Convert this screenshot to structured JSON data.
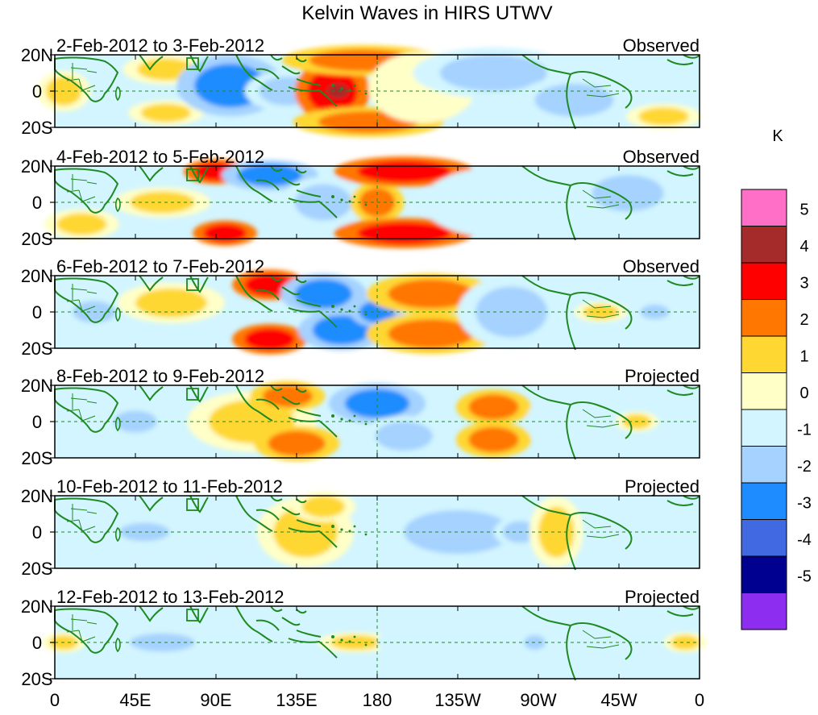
{
  "chart_data": {
    "type": "heatmap",
    "title": "Kelvin Waves in HIRS UTWV",
    "x_tick_labels": [
      "0",
      "45E",
      "90E",
      "135E",
      "180",
      "135W",
      "90W",
      "45W",
      "0"
    ],
    "x_tick_values_deg_east": [
      0,
      45,
      90,
      135,
      180,
      225,
      270,
      315,
      360
    ],
    "xlim": [
      0,
      360
    ],
    "y_tick_labels": [
      "20N",
      "0",
      "20S"
    ],
    "y_tick_values": [
      20,
      0,
      -20
    ],
    "ylim": [
      -20,
      20
    ],
    "colorbar": {
      "unit": "K",
      "levels": [
        5,
        4,
        3,
        2,
        1,
        0,
        -1,
        -2,
        -3,
        -4,
        -5
      ],
      "colors": [
        "#ff6ec7",
        "#a52a2a",
        "#ff0000",
        "#ff7700",
        "#ffd733",
        "#ffffc8",
        "#d2f5ff",
        "#a5d2ff",
        "#1e8cff",
        "#4169e1",
        "#000090",
        "#8c2df0"
      ]
    },
    "panels": [
      {
        "date_range": "2-Feb-2012 to 3-Feb-2012",
        "status": "Observed",
        "blobs": [
          {
            "lon": 5,
            "lat": 0,
            "rx": 10,
            "ry": 8,
            "value": 1.2
          },
          {
            "lon": 62,
            "lat": 12,
            "rx": 16,
            "ry": 6,
            "value": 1.5
          },
          {
            "lon": 62,
            "lat": -12,
            "rx": 14,
            "ry": 5,
            "value": 1.3
          },
          {
            "lon": 98,
            "lat": 3,
            "rx": 20,
            "ry": 12,
            "value": -2.2
          },
          {
            "lon": 130,
            "lat": 0,
            "rx": 16,
            "ry": 8,
            "value": -1.5
          },
          {
            "lon": 155,
            "lat": 0,
            "rx": 14,
            "ry": 12,
            "value": 3.0
          },
          {
            "lon": 158,
            "lat": 0,
            "rx": 6,
            "ry": 4,
            "value": 4.0
          },
          {
            "lon": 172,
            "lat": 17,
            "rx": 30,
            "ry": 6,
            "value": 2.4
          },
          {
            "lon": 175,
            "lat": -17,
            "rx": 28,
            "ry": 6,
            "value": 2.5
          },
          {
            "lon": 205,
            "lat": 2,
            "rx": 20,
            "ry": 14,
            "value": 0.8
          },
          {
            "lon": 245,
            "lat": 10,
            "rx": 30,
            "ry": 10,
            "value": -1.2
          },
          {
            "lon": 290,
            "lat": -5,
            "rx": 22,
            "ry": 9,
            "value": -1.3
          },
          {
            "lon": 340,
            "lat": -14,
            "rx": 14,
            "ry": 5,
            "value": 1.8
          }
        ]
      },
      {
        "date_range": "4-Feb-2012 to 5-Feb-2012",
        "status": "Observed",
        "blobs": [
          {
            "lon": 15,
            "lat": -12,
            "rx": 14,
            "ry": 6,
            "value": 1.3
          },
          {
            "lon": 60,
            "lat": 0,
            "rx": 18,
            "ry": 6,
            "value": 1.0
          },
          {
            "lon": 90,
            "lat": 17,
            "rx": 12,
            "ry": 5,
            "value": 3.2
          },
          {
            "lon": 95,
            "lat": -17,
            "rx": 12,
            "ry": 5,
            "value": 3.0
          },
          {
            "lon": 120,
            "lat": 15,
            "rx": 18,
            "ry": 6,
            "value": -2.4
          },
          {
            "lon": 150,
            "lat": 0,
            "rx": 16,
            "ry": 10,
            "value": -2.0
          },
          {
            "lon": 180,
            "lat": 0,
            "rx": 10,
            "ry": 8,
            "value": 2.8
          },
          {
            "lon": 195,
            "lat": 17,
            "rx": 26,
            "ry": 6,
            "value": 3.2
          },
          {
            "lon": 195,
            "lat": -17,
            "rx": 26,
            "ry": 6,
            "value": 3.0
          },
          {
            "lon": 250,
            "lat": 0,
            "rx": 30,
            "ry": 14,
            "value": -0.8
          },
          {
            "lon": 320,
            "lat": 5,
            "rx": 20,
            "ry": 10,
            "value": -1.2
          }
        ]
      },
      {
        "date_range": "6-Feb-2012 to 7-Feb-2012",
        "status": "Observed",
        "blobs": [
          {
            "lon": 22,
            "lat": 0,
            "rx": 12,
            "ry": 6,
            "value": -2.0
          },
          {
            "lon": 65,
            "lat": 5,
            "rx": 20,
            "ry": 8,
            "value": 1.0
          },
          {
            "lon": 120,
            "lat": 15,
            "rx": 14,
            "ry": 6,
            "value": 3.2
          },
          {
            "lon": 120,
            "lat": -15,
            "rx": 14,
            "ry": 6,
            "value": 3.0
          },
          {
            "lon": 150,
            "lat": 10,
            "rx": 16,
            "ry": 8,
            "value": -3.0
          },
          {
            "lon": 160,
            "lat": -10,
            "rx": 16,
            "ry": 8,
            "value": -2.5
          },
          {
            "lon": 180,
            "lat": 0,
            "rx": 10,
            "ry": 6,
            "value": -2.2
          },
          {
            "lon": 210,
            "lat": 10,
            "rx": 24,
            "ry": 8,
            "value": 2.6
          },
          {
            "lon": 210,
            "lat": -12,
            "rx": 24,
            "ry": 8,
            "value": 2.8
          },
          {
            "lon": 255,
            "lat": 0,
            "rx": 20,
            "ry": 14,
            "value": -1.4
          },
          {
            "lon": 305,
            "lat": 0,
            "rx": 10,
            "ry": 4,
            "value": 1.5
          },
          {
            "lon": 335,
            "lat": 0,
            "rx": 8,
            "ry": 4,
            "value": -2.0
          }
        ]
      },
      {
        "date_range": "8-Feb-2012 to 9-Feb-2012",
        "status": "Projected",
        "blobs": [
          {
            "lon": 45,
            "lat": 0,
            "rx": 12,
            "ry": 6,
            "value": -2.0
          },
          {
            "lon": 110,
            "lat": 0,
            "rx": 24,
            "ry": 12,
            "value": 1.8
          },
          {
            "lon": 130,
            "lat": 14,
            "rx": 14,
            "ry": 6,
            "value": 2.2
          },
          {
            "lon": 135,
            "lat": -12,
            "rx": 16,
            "ry": 7,
            "value": 2.4
          },
          {
            "lon": 180,
            "lat": 10,
            "rx": 18,
            "ry": 8,
            "value": -2.2
          },
          {
            "lon": 195,
            "lat": -8,
            "rx": 16,
            "ry": 8,
            "value": -2.0
          },
          {
            "lon": 245,
            "lat": 8,
            "rx": 14,
            "ry": 7,
            "value": 2.8
          },
          {
            "lon": 245,
            "lat": -10,
            "rx": 14,
            "ry": 7,
            "value": 2.6
          },
          {
            "lon": 290,
            "lat": 0,
            "rx": 18,
            "ry": 12,
            "value": -0.8
          },
          {
            "lon": 325,
            "lat": 0,
            "rx": 8,
            "ry": 4,
            "value": 1.2
          }
        ]
      },
      {
        "date_range": "10-Feb-2012 to 11-Feb-2012",
        "status": "Projected",
        "blobs": [
          {
            "lon": 50,
            "lat": 0,
            "rx": 14,
            "ry": 5,
            "value": -1.2
          },
          {
            "lon": 140,
            "lat": 0,
            "rx": 18,
            "ry": 14,
            "value": 1.5
          },
          {
            "lon": 150,
            "lat": 14,
            "rx": 12,
            "ry": 6,
            "value": 1.6
          },
          {
            "lon": 225,
            "lat": 0,
            "rx": 30,
            "ry": 12,
            "value": -1.2
          },
          {
            "lon": 260,
            "lat": 0,
            "rx": 10,
            "ry": 6,
            "value": -1.5
          },
          {
            "lon": 280,
            "lat": 0,
            "rx": 10,
            "ry": 14,
            "value": 1.5
          }
        ]
      },
      {
        "date_range": "12-Feb-2012 to 13-Feb-2012",
        "status": "Projected",
        "blobs": [
          {
            "lon": 5,
            "lat": 0,
            "rx": 8,
            "ry": 4,
            "value": 1.2
          },
          {
            "lon": 60,
            "lat": 0,
            "rx": 18,
            "ry": 5,
            "value": -1.2
          },
          {
            "lon": 168,
            "lat": 0,
            "rx": 14,
            "ry": 4,
            "value": 1.4
          },
          {
            "lon": 240,
            "lat": 0,
            "rx": 40,
            "ry": 12,
            "value": -0.8
          },
          {
            "lon": 268,
            "lat": 0,
            "rx": 6,
            "ry": 4,
            "value": -1.5
          },
          {
            "lon": 352,
            "lat": 0,
            "rx": 8,
            "ry": 4,
            "value": 1.3
          }
        ]
      }
    ]
  }
}
